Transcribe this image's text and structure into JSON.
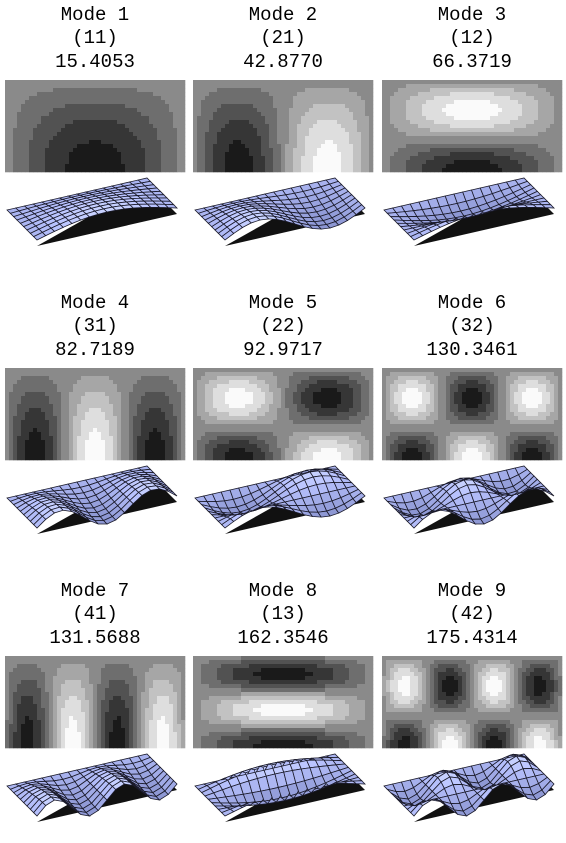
{
  "modes": [
    {
      "title": "Mode 1",
      "indices": "(11)",
      "frequency": "15.4053"
    },
    {
      "title": "Mode 2",
      "indices": "(21)",
      "frequency": "42.8770"
    },
    {
      "title": "Mode 3",
      "indices": "(12)",
      "frequency": "66.3719"
    },
    {
      "title": "Mode 4",
      "indices": "(31)",
      "frequency": "82.7189"
    },
    {
      "title": "Mode 5",
      "indices": "(22)",
      "frequency": "92.9717"
    },
    {
      "title": "Mode 6",
      "indices": "(32)",
      "frequency": "130.3461"
    },
    {
      "title": "Mode 7",
      "indices": "(41)",
      "frequency": "131.5688"
    },
    {
      "title": "Mode 8",
      "indices": "(13)",
      "frequency": "162.3546"
    },
    {
      "title": "Mode 9",
      "indices": "(42)",
      "frequency": "175.4314"
    }
  ]
}
